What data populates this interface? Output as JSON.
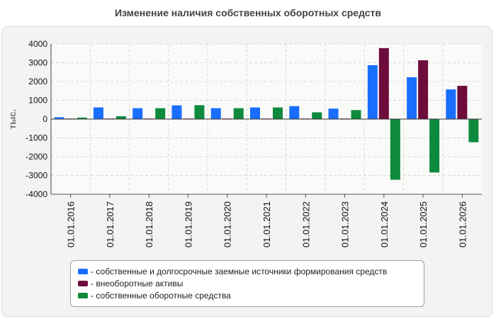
{
  "chart_data": {
    "type": "bar",
    "title": "Изменение наличия собственных оборотных средств",
    "ylabel": "тыс.",
    "xlabel": "",
    "ylim": [
      -4000,
      4000
    ],
    "yticks": [
      4000,
      3000,
      2000,
      1000,
      0,
      -1000,
      -2000,
      -3000,
      -4000
    ],
    "categories": [
      "01.01.2016",
      "01.01.2017",
      "01.01.2018",
      "01.01.2019",
      "01.01.2020",
      "01.01.2021",
      "01.01.2022",
      "01.01.2023",
      "01.01.2024",
      "01.01.2025",
      "01.01.2026"
    ],
    "grid": true,
    "legend_position": "bottom",
    "series": [
      {
        "name": "- собственные и долгосрочные заемные источники формирования средств",
        "color": "#1a6eff",
        "values": [
          100,
          620,
          580,
          730,
          580,
          620,
          690,
          560,
          2870,
          2230,
          1580
        ]
      },
      {
        "name": "- внеоборотные активы",
        "color": "#6e0c3c",
        "values": [
          30,
          30,
          30,
          30,
          30,
          30,
          30,
          30,
          3780,
          3130,
          1770
        ]
      },
      {
        "name": "- собственные оборотные средства",
        "color": "#0e8a3c",
        "values": [
          80,
          150,
          580,
          740,
          580,
          620,
          360,
          480,
          -3230,
          -2840,
          -1230
        ]
      }
    ]
  }
}
